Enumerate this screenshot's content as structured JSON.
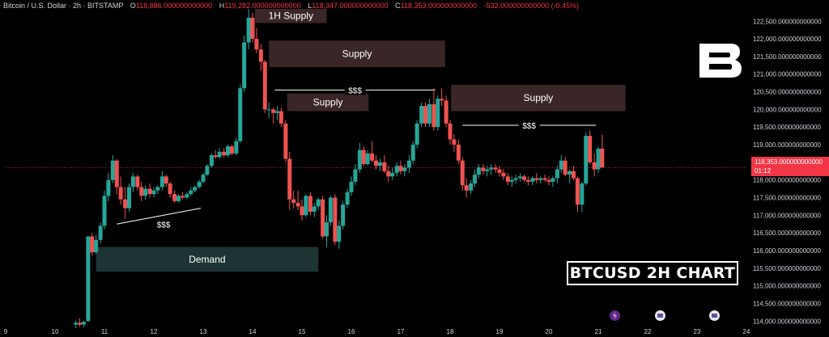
{
  "header": {
    "symbol": "Bitcoin / U.S. Dollar · 2h · BITSTAMP",
    "open_label": "O",
    "open": "118,886.000000000000",
    "high_label": "H",
    "high": "119,282.000000000000",
    "low_label": "L",
    "low": "118,347.000000000000",
    "close_label": "C",
    "close": "118,353.000000000000",
    "change": "-532.000000000000 (-0.45%)"
  },
  "price_badge": {
    "price": "118,353.000000000000",
    "countdown": "01:12"
  },
  "chart_title": "BTCUSD 2H CHART",
  "colors": {
    "background": "#000000",
    "bull": "#26a69a",
    "bear": "#ef5350",
    "supply_zone": "#3a2626",
    "demand_zone": "#1e3333",
    "axis_text": "#d1d4dc"
  },
  "icons": [
    "brand-b-logo-icon",
    "event-lightning-icon",
    "event-flag-icon",
    "event-flag-icon"
  ],
  "chart_data": {
    "type": "candlestick",
    "instrument": "BTCUSD",
    "timeframe": "2h",
    "ylim": [
      113800,
      122850
    ],
    "y_ticks": [
      114000,
      114500,
      115000,
      115500,
      116000,
      116500,
      117000,
      117500,
      118000,
      118500,
      119000,
      119500,
      120000,
      120500,
      121000,
      121500,
      122000,
      122500
    ],
    "y_tick_labels": [
      "114,000.000000000000",
      "114,500.000000000000",
      "115,000.000000000000",
      "115,500.000000000000",
      "116,000.000000000000",
      "116,500.000000000000",
      "117,000.000000000000",
      "117,500.000000000000",
      "118,000.000000000000",
      "118,500.000000000000",
      "119,000.000000000000",
      "119,500.000000000000",
      "120,000.000000000000",
      "120,500.000000000000",
      "121,000.000000000000",
      "121,500.000000000000",
      "122,000.000000000000",
      "122,500.000000000000"
    ],
    "xlim": [
      9,
      24
    ],
    "x_ticks": [
      9,
      10,
      11,
      12,
      13,
      14,
      15,
      16,
      17,
      18,
      19,
      20,
      21,
      22,
      23,
      24
    ],
    "x_tick_labels": [
      "9",
      "10",
      "11",
      "12",
      "13",
      "14",
      "15",
      "16",
      "17",
      "18",
      "19",
      "20",
      "21",
      "22",
      "23",
      "24"
    ],
    "last_price": 118353,
    "candles": [
      [
        10.42,
        113900,
        114020,
        113800,
        113950
      ],
      [
        10.5,
        113950,
        114080,
        113850,
        113900
      ],
      [
        10.58,
        113900,
        114000,
        113820,
        113980
      ],
      [
        10.67,
        114000,
        116400,
        113980,
        116400
      ],
      [
        10.75,
        116400,
        116500,
        115850,
        115950
      ],
      [
        10.83,
        115950,
        116450,
        115900,
        116300
      ],
      [
        10.92,
        116300,
        116800,
        116200,
        116700
      ],
      [
        11.0,
        116700,
        117700,
        116600,
        117550
      ],
      [
        11.08,
        117550,
        118200,
        117400,
        118000
      ],
      [
        11.17,
        118000,
        118700,
        117900,
        118550
      ],
      [
        11.25,
        118550,
        118600,
        117600,
        117800
      ],
      [
        11.33,
        117800,
        118100,
        117300,
        117450
      ],
      [
        11.42,
        117450,
        117800,
        116900,
        117200
      ],
      [
        11.5,
        117200,
        117900,
        117100,
        117800
      ],
      [
        11.58,
        117800,
        118200,
        117650,
        118100
      ],
      [
        11.67,
        118100,
        118150,
        117700,
        117800
      ],
      [
        11.75,
        117800,
        117950,
        117400,
        117550
      ],
      [
        11.83,
        117550,
        117850,
        117450,
        117750
      ],
      [
        11.92,
        117750,
        117900,
        117500,
        117600
      ],
      [
        12.0,
        117600,
        117800,
        117500,
        117700
      ],
      [
        12.08,
        117700,
        117850,
        117600,
        117800
      ],
      [
        12.17,
        117800,
        118250,
        117700,
        118100
      ],
      [
        12.25,
        118100,
        118150,
        117800,
        117900
      ],
      [
        12.33,
        117900,
        117950,
        117500,
        117600
      ],
      [
        12.42,
        117600,
        117700,
        117350,
        117400
      ],
      [
        12.5,
        117400,
        117600,
        117350,
        117550
      ],
      [
        12.58,
        117550,
        117650,
        117450,
        117500
      ],
      [
        12.67,
        117500,
        117650,
        117450,
        117600
      ],
      [
        12.75,
        117600,
        117800,
        117550,
        117700
      ],
      [
        12.83,
        117700,
        117850,
        117650,
        117800
      ],
      [
        12.92,
        117800,
        118000,
        117750,
        117950
      ],
      [
        13.0,
        117950,
        118200,
        117900,
        118150
      ],
      [
        13.08,
        118150,
        118450,
        118100,
        118400
      ],
      [
        13.17,
        118400,
        118750,
        118350,
        118700
      ],
      [
        13.25,
        118700,
        118850,
        118600,
        118650
      ],
      [
        13.33,
        118650,
        118900,
        118600,
        118800
      ],
      [
        13.42,
        118800,
        118900,
        118650,
        118700
      ],
      [
        13.5,
        118700,
        119000,
        118650,
        118950
      ],
      [
        13.58,
        118950,
        119000,
        118700,
        118750
      ],
      [
        13.67,
        118750,
        119200,
        118700,
        119100
      ],
      [
        13.75,
        119100,
        120700,
        119050,
        120600
      ],
      [
        13.83,
        120600,
        122100,
        120500,
        121900
      ],
      [
        13.92,
        121900,
        122850,
        121700,
        122600
      ],
      [
        14.0,
        122600,
        122750,
        121900,
        122000
      ],
      [
        14.08,
        122000,
        122300,
        121600,
        121700
      ],
      [
        14.17,
        121700,
        121850,
        121100,
        121350
      ],
      [
        14.25,
        121350,
        121400,
        119900,
        120000
      ],
      [
        14.33,
        120000,
        120200,
        119750,
        120000
      ],
      [
        14.42,
        120000,
        120050,
        119600,
        119900
      ],
      [
        14.5,
        119900,
        120100,
        119700,
        119950
      ],
      [
        14.58,
        119950,
        120050,
        119500,
        119600
      ],
      [
        14.67,
        119600,
        119700,
        118500,
        118600
      ],
      [
        14.75,
        118600,
        118800,
        117150,
        117450
      ],
      [
        14.83,
        117450,
        117700,
        117200,
        117350
      ],
      [
        14.92,
        117350,
        117700,
        117150,
        117250
      ],
      [
        15.0,
        117250,
        117450,
        116850,
        117000
      ],
      [
        15.08,
        117000,
        117600,
        116950,
        117550
      ],
      [
        15.17,
        117550,
        117650,
        117000,
        117100
      ],
      [
        15.25,
        117100,
        117350,
        116950,
        117250
      ],
      [
        15.33,
        117250,
        117500,
        117150,
        117450
      ],
      [
        15.42,
        117450,
        117550,
        116350,
        116400
      ],
      [
        15.5,
        116400,
        117000,
        116100,
        116800
      ],
      [
        15.58,
        116800,
        117550,
        116700,
        117500
      ],
      [
        15.67,
        117500,
        117600,
        116150,
        116250
      ],
      [
        15.75,
        116250,
        116850,
        116050,
        116700
      ],
      [
        15.83,
        116700,
        117400,
        116600,
        117300
      ],
      [
        15.92,
        117300,
        117750,
        117200,
        117650
      ],
      [
        16.0,
        117650,
        118100,
        117550,
        117950
      ],
      [
        16.08,
        117950,
        118450,
        117850,
        118300
      ],
      [
        16.17,
        118300,
        119050,
        118200,
        118850
      ],
      [
        16.25,
        118850,
        118950,
        118400,
        118450
      ],
      [
        16.33,
        118450,
        118850,
        118400,
        118750
      ],
      [
        16.42,
        118750,
        119100,
        118500,
        118550
      ],
      [
        16.5,
        118550,
        118700,
        118300,
        118400
      ],
      [
        16.58,
        118400,
        118600,
        118250,
        118500
      ],
      [
        16.67,
        118500,
        118700,
        118200,
        118250
      ],
      [
        16.75,
        118250,
        118400,
        117950,
        118100
      ],
      [
        16.83,
        118100,
        118350,
        118000,
        118200
      ],
      [
        16.92,
        118200,
        118500,
        118100,
        118400
      ],
      [
        17.0,
        118400,
        118550,
        118150,
        118250
      ],
      [
        17.08,
        118250,
        118450,
        118100,
        118350
      ],
      [
        17.17,
        118350,
        118700,
        118200,
        118550
      ],
      [
        17.25,
        118550,
        119100,
        118450,
        119000
      ],
      [
        17.33,
        119000,
        119700,
        118900,
        119600
      ],
      [
        17.42,
        119600,
        120200,
        119500,
        120100
      ],
      [
        17.5,
        120100,
        120200,
        119500,
        119600
      ],
      [
        17.58,
        119600,
        120300,
        119500,
        120150
      ],
      [
        17.67,
        120150,
        120600,
        119400,
        119500
      ],
      [
        17.75,
        119500,
        120400,
        119400,
        120300
      ],
      [
        17.83,
        120300,
        120600,
        120100,
        120250
      ],
      [
        17.92,
        120250,
        120400,
        119500,
        119600
      ],
      [
        18.0,
        119600,
        119700,
        119000,
        119150
      ],
      [
        18.08,
        119150,
        119300,
        118800,
        119000
      ],
      [
        18.17,
        119000,
        119150,
        118450,
        118550
      ],
      [
        18.25,
        118550,
        118650,
        117700,
        117850
      ],
      [
        18.33,
        117850,
        118050,
        117500,
        117700
      ],
      [
        18.42,
        117700,
        118000,
        117600,
        117900
      ],
      [
        18.5,
        117900,
        118300,
        117800,
        118150
      ],
      [
        18.58,
        118150,
        118450,
        118050,
        118350
      ],
      [
        18.67,
        118350,
        118450,
        118150,
        118250
      ],
      [
        18.75,
        118250,
        118400,
        118100,
        118300
      ],
      [
        18.83,
        118300,
        118450,
        118150,
        118350
      ],
      [
        18.92,
        118350,
        118450,
        118200,
        118300
      ],
      [
        19.0,
        118300,
        118400,
        118100,
        118200
      ],
      [
        19.08,
        118200,
        118300,
        118000,
        118100
      ],
      [
        19.17,
        118100,
        118200,
        117850,
        117950
      ],
      [
        19.25,
        117950,
        118100,
        117800,
        118000
      ],
      [
        19.33,
        118000,
        118150,
        117900,
        118050
      ],
      [
        19.42,
        118050,
        118200,
        117950,
        118100
      ],
      [
        19.5,
        118100,
        118150,
        117950,
        118000
      ],
      [
        19.58,
        118000,
        118100,
        117850,
        117950
      ],
      [
        19.67,
        117950,
        118100,
        117850,
        118050
      ],
      [
        19.75,
        118050,
        118200,
        117900,
        118000
      ],
      [
        19.83,
        118000,
        118100,
        117900,
        118050
      ],
      [
        19.92,
        118050,
        118150,
        117950,
        118000
      ],
      [
        20.0,
        118000,
        118100,
        117850,
        117950
      ],
      [
        20.08,
        117950,
        118100,
        117800,
        118050
      ],
      [
        20.17,
        118050,
        118400,
        117900,
        118300
      ],
      [
        20.25,
        118300,
        118700,
        118200,
        118550
      ],
      [
        20.33,
        118550,
        118650,
        118100,
        118150
      ],
      [
        20.42,
        118150,
        118300,
        117900,
        118250
      ],
      [
        20.5,
        118250,
        118400,
        118000,
        118050
      ],
      [
        20.58,
        118050,
        118100,
        117100,
        117300
      ],
      [
        20.67,
        117300,
        117950,
        117100,
        117900
      ],
      [
        20.75,
        117900,
        119350,
        117850,
        119250
      ],
      [
        20.83,
        119250,
        119400,
        118450,
        118500
      ],
      [
        20.92,
        118500,
        118750,
        118100,
        118300
      ],
      [
        21.0,
        118300,
        118950,
        118200,
        118886
      ],
      [
        21.08,
        118886,
        119282,
        118347,
        118353
      ]
    ],
    "zones": [
      {
        "type": "supply",
        "label": "1H Supply",
        "x0": 14.05,
        "x1": 15.5,
        "y0": 122450,
        "y1": 123000
      },
      {
        "type": "supply",
        "label": "Supply",
        "x0": 14.33,
        "x1": 17.9,
        "y0": 121200,
        "y1": 121950
      },
      {
        "type": "supply",
        "label": "Supply",
        "x0": 14.7,
        "x1": 16.35,
        "y0": 119950,
        "y1": 120450
      },
      {
        "type": "supply",
        "label": "Supply",
        "x0": 18.02,
        "x1": 21.55,
        "y0": 119950,
        "y1": 120700
      },
      {
        "type": "demand",
        "label": "Demand",
        "x0": 10.83,
        "x1": 15.33,
        "y0": 115400,
        "y1": 116100
      }
    ],
    "liquidity_lines": [
      {
        "label": "$$$",
        "x0": 14.45,
        "x1": 17.7,
        "y0": 120550,
        "y1": 120550
      },
      {
        "label": "$$$",
        "x0": 18.25,
        "x1": 20.95,
        "y0": 119550,
        "y1": 119550
      },
      {
        "label": "$$$",
        "x0": 11.25,
        "x1": 12.95,
        "y0": 116750,
        "y1": 117200
      }
    ]
  }
}
